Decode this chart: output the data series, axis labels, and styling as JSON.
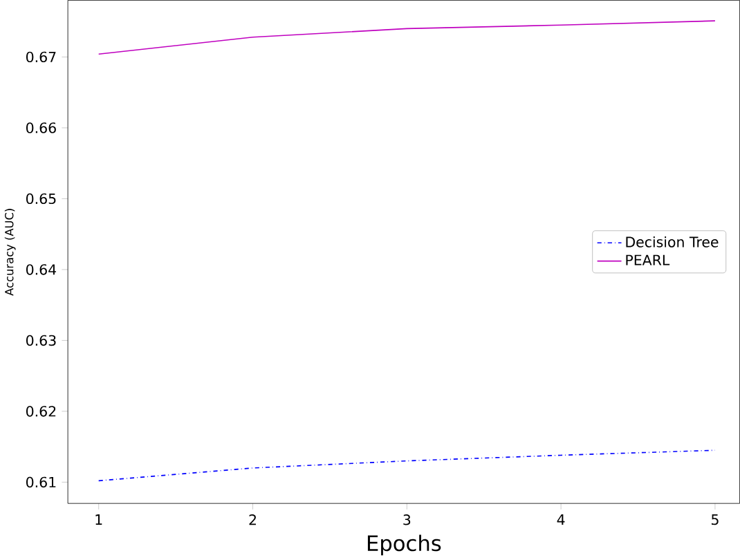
{
  "chart_data": {
    "type": "line",
    "xlabel": "Epochs",
    "ylabel": "Accuracy (AUC)",
    "x": [
      1,
      2,
      3,
      4,
      5
    ],
    "series": [
      {
        "name": "Decision Tree",
        "color": "#0000ff",
        "line_style": "dashdot",
        "values": [
          0.6102,
          0.612,
          0.613,
          0.6138,
          0.6145
        ]
      },
      {
        "name": "PEARL",
        "color": "#bf00bf",
        "line_style": "solid",
        "values": [
          0.6704,
          0.6728,
          0.674,
          0.6745,
          0.6751
        ]
      }
    ],
    "xlim": [
      0.8,
      5.16
    ],
    "xticks": [
      1,
      2,
      3,
      4,
      5
    ],
    "ylim": [
      0.607,
      0.678
    ],
    "yticks": [
      0.61,
      0.62,
      0.63,
      0.64,
      0.65,
      0.66,
      0.67
    ],
    "legend": "right",
    "grid": false,
    "marker": "none"
  }
}
